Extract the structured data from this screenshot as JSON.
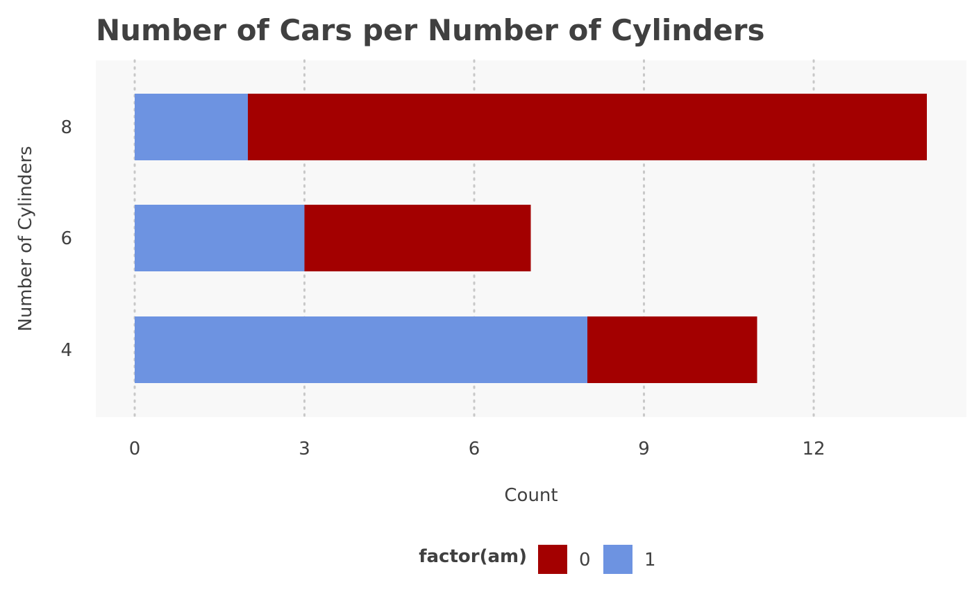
{
  "chart_data": {
    "type": "bar",
    "orientation": "horizontal",
    "stacked": true,
    "title": "Number of Cars per Number of Cylinders",
    "xlabel": "Count",
    "ylabel": "Number of Cylinders",
    "categories": [
      "4",
      "6",
      "8"
    ],
    "series": [
      {
        "name": "1",
        "color": "#6d93e1",
        "values": [
          8,
          3,
          2
        ]
      },
      {
        "name": "0",
        "color": "#a30000",
        "values": [
          3,
          4,
          12
        ]
      }
    ],
    "xlim": [
      0,
      14
    ],
    "x_ticks": [
      "0",
      "3",
      "6",
      "9",
      "12"
    ],
    "x_tick_values": [
      0,
      3,
      6,
      9,
      12
    ],
    "grid": "vertical dotted",
    "legend": {
      "title": "factor(am)",
      "position": "bottom",
      "items": [
        {
          "label": "0",
          "color": "#a30000"
        },
        {
          "label": "1",
          "color": "#6d93e1"
        }
      ]
    },
    "panel_background": "#f8f8f8"
  }
}
